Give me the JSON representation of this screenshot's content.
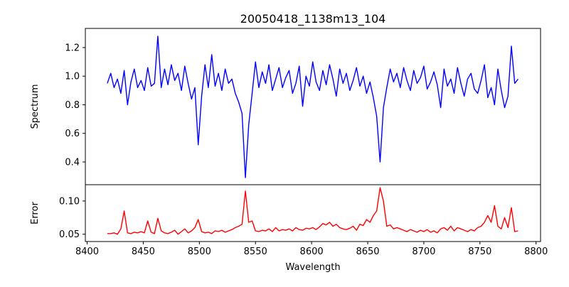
{
  "chart_data": [
    {
      "type": "line",
      "title": "20050418_1138m13_104",
      "xlabel": "",
      "ylabel": "Spectrum",
      "xlim": [
        8398.4,
        8804
      ],
      "ylim": [
        0.241,
        1.334
      ],
      "yticks": [
        "0.4",
        "0.6",
        "0.8",
        "1.0",
        "1.2"
      ],
      "ytick_values": [
        0.4,
        0.6,
        0.8,
        1.0,
        1.2
      ],
      "color": "#0000ff",
      "x_start": 8418,
      "x_step": 3,
      "values": [
        0.95,
        1.02,
        0.92,
        0.98,
        0.88,
        1.04,
        0.8,
        0.96,
        1.05,
        0.92,
        0.97,
        0.9,
        1.06,
        0.93,
        0.95,
        1.28,
        0.92,
        1.05,
        0.94,
        1.08,
        0.97,
        1.02,
        0.9,
        1.07,
        0.95,
        0.84,
        0.92,
        0.52,
        0.86,
        1.08,
        0.92,
        1.15,
        0.93,
        1.02,
        0.9,
        1.05,
        0.95,
        0.98,
        0.88,
        0.82,
        0.74,
        0.29,
        0.66,
        0.88,
        1.1,
        0.92,
        1.03,
        0.95,
        1.08,
        0.9,
        0.98,
        1.06,
        0.92,
        0.99,
        1.04,
        0.88,
        0.95,
        1.07,
        0.79,
        1.0,
        0.93,
        1.1,
        0.96,
        0.9,
        1.04,
        0.94,
        1.08,
        0.98,
        0.86,
        1.05,
        0.95,
        1.02,
        0.9,
        0.97,
        1.06,
        0.93,
        1.0,
        0.88,
        0.96,
        0.85,
        0.72,
        0.4,
        0.78,
        0.92,
        1.05,
        0.96,
        1.02,
        0.92,
        1.06,
        0.97,
        0.9,
        1.04,
        0.95,
        0.99,
        1.07,
        0.91,
        0.96,
        1.03,
        0.94,
        0.78,
        1.05,
        0.93,
        0.98,
        0.88,
        1.06,
        0.95,
        0.86,
        0.98,
        1.02,
        0.91,
        0.88,
        0.97,
        1.08,
        0.85,
        0.92,
        0.8,
        1.05,
        0.9,
        0.78,
        0.86,
        1.21,
        0.95,
        0.98
      ]
    },
    {
      "type": "line",
      "title": "",
      "xlabel": "Wavelength",
      "ylabel": "Error",
      "xlim": [
        8398.4,
        8804
      ],
      "ylim": [
        0.039,
        0.1245
      ],
      "xticks": [
        "8400",
        "8450",
        "8500",
        "8550",
        "8600",
        "8650",
        "8700",
        "8750",
        "8800"
      ],
      "xtick_values": [
        8400,
        8450,
        8500,
        8550,
        8600,
        8650,
        8700,
        8750,
        8800
      ],
      "yticks": [
        "0.05",
        "0.10"
      ],
      "ytick_values": [
        0.05,
        0.1
      ],
      "color": "#ff0000",
      "x_start": 8418,
      "x_step": 3,
      "values": [
        0.051,
        0.051,
        0.052,
        0.05,
        0.058,
        0.085,
        0.052,
        0.051,
        0.053,
        0.052,
        0.054,
        0.052,
        0.07,
        0.053,
        0.051,
        0.074,
        0.055,
        0.052,
        0.051,
        0.053,
        0.056,
        0.05,
        0.054,
        0.058,
        0.052,
        0.055,
        0.06,
        0.072,
        0.054,
        0.052,
        0.053,
        0.051,
        0.055,
        0.054,
        0.056,
        0.053,
        0.055,
        0.057,
        0.06,
        0.062,
        0.065,
        0.115,
        0.068,
        0.07,
        0.055,
        0.054,
        0.056,
        0.055,
        0.058,
        0.054,
        0.06,
        0.055,
        0.057,
        0.056,
        0.058,
        0.055,
        0.06,
        0.057,
        0.056,
        0.059,
        0.058,
        0.06,
        0.057,
        0.061,
        0.066,
        0.064,
        0.068,
        0.062,
        0.065,
        0.06,
        0.058,
        0.057,
        0.059,
        0.062,
        0.056,
        0.065,
        0.063,
        0.072,
        0.068,
        0.078,
        0.085,
        0.12,
        0.1,
        0.062,
        0.064,
        0.058,
        0.06,
        0.058,
        0.056,
        0.054,
        0.057,
        0.055,
        0.053,
        0.056,
        0.054,
        0.057,
        0.053,
        0.055,
        0.052,
        0.058,
        0.06,
        0.056,
        0.062,
        0.055,
        0.06,
        0.058,
        0.056,
        0.054,
        0.057,
        0.055,
        0.06,
        0.062,
        0.068,
        0.078,
        0.068,
        0.093,
        0.062,
        0.058,
        0.075,
        0.06,
        0.09,
        0.054,
        0.055
      ]
    }
  ]
}
